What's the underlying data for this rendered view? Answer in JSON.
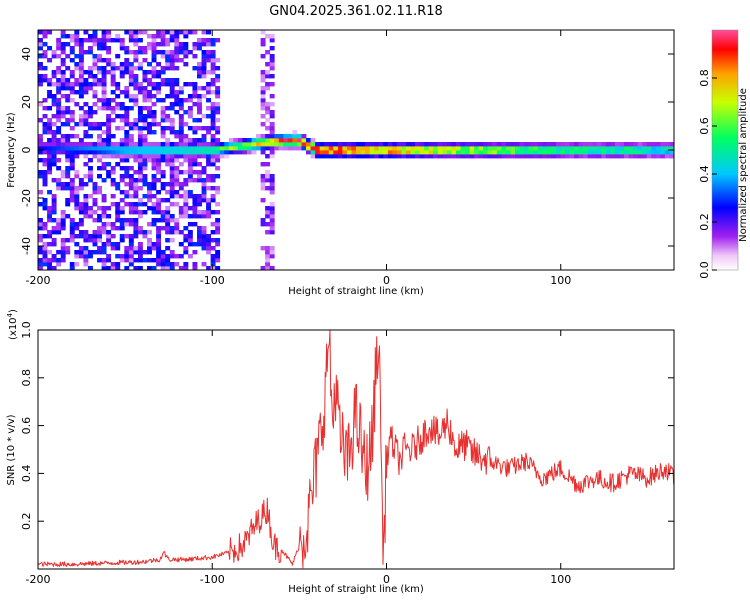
{
  "title": "GN04.2025.361.02.11.R18",
  "chart_data": [
    {
      "type": "heatmap",
      "xlabel": "Height of straight line (km)",
      "ylabel": "Frequency (Hz)",
      "xlim": [
        -200,
        165
      ],
      "ylim": [
        -50,
        50
      ],
      "x_ticks": [
        -200,
        -100,
        0,
        100
      ],
      "x_tick_labels": [
        "-200",
        "-100",
        "0",
        "100"
      ],
      "y_ticks": [
        -40,
        -20,
        0,
        20,
        40
      ],
      "y_tick_labels": [
        "-40",
        "-20",
        "0",
        "20",
        "40"
      ],
      "colorbar": {
        "label": "Normalized spectral amplitude",
        "range": [
          0,
          1
        ],
        "ticks": [
          0.0,
          0.2,
          0.4,
          0.6,
          0.8
        ],
        "tick_labels": [
          "0.0",
          "0.2",
          "0.4",
          "0.6",
          "0.8"
        ]
      },
      "ridge": {
        "x": [
          -200,
          -150,
          -120,
          -100,
          -80,
          -60,
          -50,
          -45,
          -40,
          -20,
          0,
          20,
          60,
          100,
          140,
          165
        ],
        "center_freq": [
          1,
          0,
          0,
          0,
          2,
          4,
          4,
          2,
          0,
          0,
          0,
          0,
          0,
          0,
          0,
          0
        ],
        "peak_amplitude": [
          0.25,
          0.45,
          0.5,
          0.55,
          0.7,
          0.85,
          0.9,
          0.95,
          1.0,
          0.95,
          0.9,
          0.8,
          0.7,
          0.6,
          0.55,
          0.5
        ]
      },
      "noise_regions": [
        {
          "x_range": [
            -200,
            -95
          ],
          "amplitude": 0.2
        },
        {
          "x_range": [
            -72,
            -65
          ],
          "amplitude": 0.15
        }
      ],
      "grid": false
    },
    {
      "type": "line",
      "xlabel": "Height of straight line (km)",
      "ylabel": "SNR (10 * v/v)",
      "y_multiplier_label": "(x10",
      "y_multiplier_exp": "4",
      "y_multiplier_close": ")",
      "xlim": [
        -200,
        165
      ],
      "ylim": [
        0,
        1.0
      ],
      "x_ticks": [
        -200,
        -100,
        0,
        100
      ],
      "x_tick_labels": [
        "-200",
        "-100",
        "0",
        "100"
      ],
      "y_ticks": [
        0.2,
        0.4,
        0.6,
        0.8,
        1.0
      ],
      "y_tick_labels": [
        "0.2",
        "0.4",
        "0.6",
        "0.8",
        "1.0"
      ],
      "line_color": "#e8302f",
      "series": [
        {
          "x": [
            -200,
            -180,
            -160,
            -140,
            -130,
            -128,
            -125,
            -115,
            -100,
            -90,
            -82,
            -78,
            -72,
            -68,
            -65,
            -60,
            -56,
            -54,
            -50,
            -45,
            -42,
            -38,
            -35,
            -33,
            -31,
            -29,
            -27,
            -25,
            -22,
            -18,
            -15,
            -12,
            -8,
            -5,
            -3,
            -2,
            0,
            2,
            5,
            8,
            10,
            15,
            20,
            25,
            30,
            35,
            40,
            45,
            50,
            60,
            70,
            80,
            90,
            100,
            110,
            120,
            130,
            140,
            150,
            160,
            165
          ],
          "y": [
            0.02,
            0.02,
            0.025,
            0.03,
            0.04,
            0.07,
            0.04,
            0.04,
            0.05,
            0.07,
            0.1,
            0.15,
            0.22,
            0.25,
            0.1,
            0.08,
            0.04,
            0.02,
            0.1,
            0.2,
            0.35,
            0.55,
            0.75,
            1.0,
            0.6,
            0.8,
            0.55,
            0.5,
            0.45,
            0.65,
            0.55,
            0.4,
            0.55,
            0.98,
            0.6,
            0.0,
            0.45,
            0.55,
            0.5,
            0.45,
            0.5,
            0.5,
            0.55,
            0.6,
            0.55,
            0.62,
            0.5,
            0.52,
            0.48,
            0.45,
            0.42,
            0.45,
            0.38,
            0.42,
            0.35,
            0.38,
            0.36,
            0.4,
            0.38,
            0.42,
            0.38
          ]
        }
      ],
      "grid": false
    }
  ]
}
